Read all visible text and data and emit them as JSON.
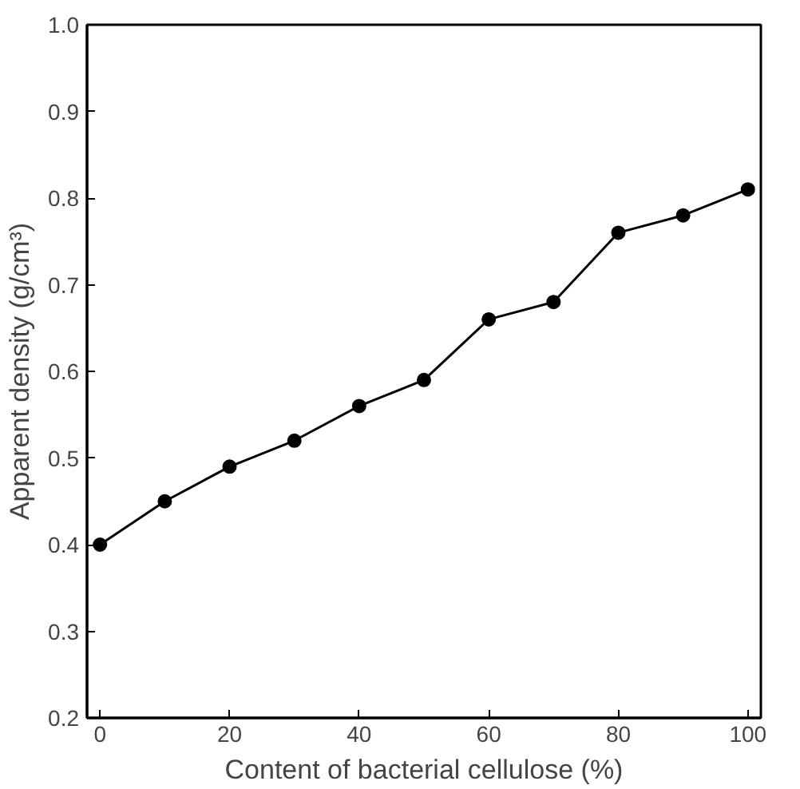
{
  "chart_data": {
    "type": "line",
    "xlabel": "Content of bacterial cellulose (%)",
    "ylabel": "Apparent density (g/cm³)",
    "x": [
      0,
      10,
      20,
      30,
      40,
      50,
      60,
      70,
      80,
      90,
      100
    ],
    "series": [
      {
        "color": "#000000",
        "values": [
          0.4,
          0.45,
          0.49,
          0.52,
          0.56,
          0.59,
          0.66,
          0.68,
          0.76,
          0.78,
          0.81
        ]
      }
    ],
    "xlim": [
      -2,
      102
    ],
    "ylim": [
      0.2,
      1.0
    ],
    "xticks": [
      0,
      20,
      40,
      60,
      80,
      100
    ],
    "yticks": [
      0.2,
      0.3,
      0.4,
      0.5,
      0.6,
      0.7,
      0.8,
      0.9,
      {
        "value": 1.0,
        "label": "1.0"
      }
    ],
    "grid": false,
    "marker": "circle",
    "line_style": "solid"
  }
}
